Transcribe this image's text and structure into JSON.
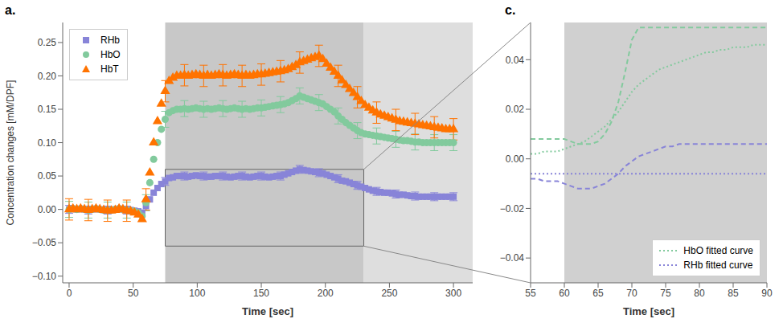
{
  "chart_data": [
    {
      "type": "scatter",
      "title": "a.",
      "xlabel": "Time [sec]",
      "ylabel": "Concentration changes [mM/DPF]",
      "xlim": [
        -5,
        315
      ],
      "ylim": [
        -0.11,
        0.28
      ],
      "xticks": [
        0,
        50,
        100,
        150,
        200,
        250,
        300
      ],
      "yticks": [
        {
          "value": -0.1,
          "label": "−0.10"
        },
        {
          "value": -0.05,
          "label": "−0.05"
        },
        {
          "value": 0,
          "label": "0.00"
        },
        0.05,
        {
          "value": 0.1,
          "label": "0.10"
        },
        0.15,
        {
          "value": 0.2,
          "label": "0.20"
        },
        0.25
      ],
      "grid": false,
      "legend": "upper left",
      "shaded_regions": [
        {
          "x": [
            75,
            230
          ],
          "color": "#c8c8c8"
        },
        {
          "x": [
            230,
            315
          ],
          "color": "#dedede"
        }
      ],
      "zoom_rect": {
        "x": [
          75,
          230
        ],
        "y": [
          -0.055,
          0.06
        ]
      },
      "error_every": 5,
      "x": [
        0,
        3,
        6,
        9,
        12,
        15,
        18,
        21,
        24,
        27,
        30,
        33,
        36,
        39,
        42,
        45,
        48,
        51,
        54,
        57,
        60,
        63,
        66,
        69,
        72,
        75,
        78,
        81,
        84,
        87,
        90,
        93,
        96,
        99,
        102,
        105,
        108,
        111,
        114,
        117,
        120,
        123,
        126,
        129,
        132,
        135,
        138,
        141,
        144,
        147,
        150,
        153,
        156,
        159,
        162,
        165,
        168,
        171,
        174,
        177,
        180,
        183,
        186,
        189,
        192,
        195,
        198,
        201,
        204,
        207,
        210,
        213,
        216,
        219,
        222,
        225,
        228,
        231,
        234,
        237,
        240,
        243,
        246,
        249,
        252,
        255,
        258,
        261,
        264,
        267,
        270,
        273,
        276,
        279,
        282,
        285,
        288,
        291,
        294,
        297,
        300
      ],
      "series": [
        {
          "name": "RHb",
          "color": "#8884d8",
          "marker": "square",
          "error": 0.006,
          "values": [
            0.0,
            0.001,
            0.0,
            0.001,
            0.0,
            -0.001,
            0.0,
            0.001,
            0.0,
            -0.001,
            -0.001,
            -0.001,
            0.0,
            0.001,
            0.0,
            -0.001,
            -0.001,
            -0.002,
            -0.003,
            -0.005,
            0.005,
            0.015,
            0.025,
            0.032,
            0.038,
            0.042,
            0.047,
            0.048,
            0.05,
            0.05,
            0.05,
            0.049,
            0.05,
            0.051,
            0.05,
            0.05,
            0.049,
            0.049,
            0.05,
            0.05,
            0.05,
            0.049,
            0.048,
            0.049,
            0.05,
            0.05,
            0.049,
            0.048,
            0.049,
            0.05,
            0.05,
            0.049,
            0.048,
            0.049,
            0.05,
            0.05,
            0.052,
            0.054,
            0.056,
            0.058,
            0.06,
            0.059,
            0.058,
            0.057,
            0.056,
            0.055,
            0.054,
            0.052,
            0.05,
            0.048,
            0.046,
            0.043,
            0.042,
            0.04,
            0.038,
            0.036,
            0.034,
            0.032,
            0.03,
            0.028,
            0.027,
            0.026,
            0.025,
            0.025,
            0.024,
            0.023,
            0.022,
            0.022,
            0.021,
            0.02,
            0.02,
            0.019,
            0.019,
            0.019,
            0.019,
            0.019,
            0.019,
            0.019,
            0.019,
            0.019,
            0.019
          ]
        },
        {
          "name": "HbO",
          "color": "#82ca9d",
          "marker": "circle",
          "error": 0.012,
          "values": [
            0.0,
            0.001,
            0.0,
            0.001,
            0.0,
            -0.001,
            0.0,
            0.001,
            0.0,
            -0.001,
            -0.001,
            -0.001,
            0.0,
            0.001,
            0.0,
            -0.001,
            -0.002,
            -0.003,
            -0.005,
            -0.01,
            0.01,
            0.04,
            0.075,
            0.1,
            0.12,
            0.135,
            0.145,
            0.148,
            0.15,
            0.15,
            0.151,
            0.15,
            0.151,
            0.152,
            0.151,
            0.15,
            0.151,
            0.15,
            0.151,
            0.152,
            0.151,
            0.15,
            0.151,
            0.152,
            0.151,
            0.15,
            0.151,
            0.15,
            0.151,
            0.152,
            0.152,
            0.153,
            0.154,
            0.155,
            0.156,
            0.157,
            0.158,
            0.16,
            0.163,
            0.166,
            0.17,
            0.168,
            0.166,
            0.164,
            0.162,
            0.16,
            0.158,
            0.154,
            0.15,
            0.146,
            0.14,
            0.135,
            0.13,
            0.126,
            0.122,
            0.118,
            0.115,
            0.113,
            0.112,
            0.111,
            0.11,
            0.109,
            0.108,
            0.107,
            0.106,
            0.105,
            0.104,
            0.103,
            0.103,
            0.102,
            0.101,
            0.101,
            0.1,
            0.1,
            0.1,
            0.1,
            0.1,
            0.1,
            0.1,
            0.1,
            0.1
          ]
        },
        {
          "name": "HbT",
          "color": "#ff7300",
          "marker": "triangle",
          "error": 0.016,
          "values": [
            0.0,
            0.001,
            0.0,
            0.001,
            0.0,
            -0.001,
            0.0,
            0.001,
            0.0,
            -0.001,
            -0.002,
            -0.002,
            -0.001,
            0.001,
            0.0,
            -0.002,
            -0.003,
            -0.005,
            -0.008,
            -0.015,
            0.015,
            0.055,
            0.1,
            0.132,
            0.158,
            0.177,
            0.192,
            0.197,
            0.2,
            0.2,
            0.201,
            0.2,
            0.201,
            0.202,
            0.201,
            0.2,
            0.201,
            0.2,
            0.201,
            0.202,
            0.201,
            0.2,
            0.201,
            0.202,
            0.201,
            0.2,
            0.201,
            0.2,
            0.201,
            0.202,
            0.202,
            0.203,
            0.204,
            0.205,
            0.206,
            0.207,
            0.208,
            0.21,
            0.213,
            0.216,
            0.22,
            0.222,
            0.224,
            0.226,
            0.228,
            0.23,
            0.225,
            0.218,
            0.212,
            0.206,
            0.2,
            0.193,
            0.186,
            0.18,
            0.174,
            0.168,
            0.162,
            0.156,
            0.152,
            0.148,
            0.145,
            0.142,
            0.14,
            0.138,
            0.136,
            0.134,
            0.132,
            0.131,
            0.13,
            0.129,
            0.128,
            0.127,
            0.126,
            0.125,
            0.124,
            0.123,
            0.122,
            0.121,
            0.12,
            0.12,
            0.12
          ]
        }
      ]
    },
    {
      "type": "line",
      "title": "c.",
      "xlabel": "Time [sec]",
      "xlim": [
        55,
        90
      ],
      "ylim": [
        -0.05,
        0.055
      ],
      "xticks": [
        55,
        60,
        65,
        70,
        75,
        80,
        85,
        90
      ],
      "yticks": [
        {
          "value": -0.04,
          "label": "−0.04"
        },
        {
          "value": -0.02,
          "label": "−0.02"
        },
        {
          "value": 0,
          "label": "0.00"
        },
        0.02,
        0.04
      ],
      "grid": false,
      "legend": "lower right",
      "shaded_regions": [
        {
          "x": [
            60,
            90
          ],
          "color": "#d0d0d0"
        }
      ],
      "x": [
        55,
        56,
        57,
        58,
        59,
        60,
        61,
        62,
        63,
        64,
        65,
        66,
        67,
        68,
        69,
        70,
        71,
        72,
        73,
        74,
        75,
        76,
        77,
        78,
        79,
        80,
        81,
        82,
        83,
        84,
        85,
        86,
        87,
        88,
        89,
        90
      ],
      "series": [
        {
          "color": "#82ca9d",
          "line_style": "dashed",
          "values": [
            0.008,
            0.008,
            0.008,
            0.008,
            0.008,
            0.008,
            0.007,
            0.006,
            0.006,
            0.006,
            0.007,
            0.01,
            0.015,
            0.023,
            0.035,
            0.048,
            0.053,
            0.053,
            0.053,
            0.053,
            0.053,
            0.053,
            0.053,
            0.053,
            0.053,
            0.053,
            0.053,
            0.053,
            0.053,
            0.053,
            0.053,
            0.053,
            0.053,
            0.053,
            0.053,
            0.053
          ]
        },
        {
          "name": "HbO fitted curve",
          "color": "#82ca9d",
          "line_style": "dotted",
          "values": [
            0.002,
            0.002,
            0.003,
            0.003,
            0.003,
            0.004,
            0.005,
            0.006,
            0.007,
            0.009,
            0.011,
            0.013,
            0.016,
            0.019,
            0.023,
            0.027,
            0.03,
            0.032,
            0.034,
            0.036,
            0.037,
            0.038,
            0.039,
            0.04,
            0.041,
            0.042,
            0.043,
            0.043,
            0.044,
            0.044,
            0.045,
            0.045,
            0.045,
            0.046,
            0.046,
            0.046
          ]
        },
        {
          "color": "#8884d8",
          "line_style": "dashed",
          "values": [
            -0.008,
            -0.008,
            -0.009,
            -0.009,
            -0.009,
            -0.01,
            -0.011,
            -0.012,
            -0.012,
            -0.012,
            -0.011,
            -0.01,
            -0.008,
            -0.006,
            -0.003,
            -0.001,
            0.001,
            0.002,
            0.003,
            0.004,
            0.005,
            0.005,
            0.006,
            0.006,
            0.006,
            0.006,
            0.006,
            0.006,
            0.006,
            0.006,
            0.006,
            0.006,
            0.006,
            0.006,
            0.006,
            0.006
          ]
        },
        {
          "name": "RHb fitted curve",
          "color": "#8884d8",
          "line_style": "dotted",
          "values": [
            -0.006,
            -0.006,
            -0.006,
            -0.006,
            -0.006,
            -0.006,
            -0.006,
            -0.006,
            -0.006,
            -0.006,
            -0.006,
            -0.006,
            -0.006,
            -0.006,
            -0.006,
            -0.006,
            -0.006,
            -0.006,
            -0.006,
            -0.006,
            -0.006,
            -0.006,
            -0.006,
            -0.006,
            -0.006,
            -0.006,
            -0.006,
            -0.006,
            -0.006,
            -0.006,
            -0.006,
            -0.006,
            -0.006,
            -0.006,
            -0.006,
            -0.006
          ]
        }
      ]
    }
  ]
}
